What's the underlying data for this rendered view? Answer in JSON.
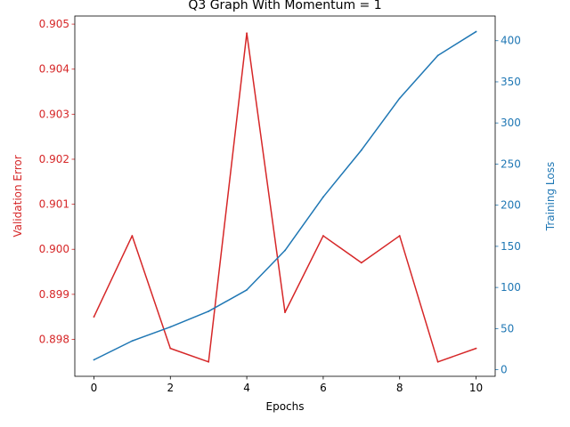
{
  "chart_data": {
    "type": "line",
    "title": "Q3 Graph With Momentum = 1",
    "xlabel": "Epochs",
    "ylabel_left": "Validation Error",
    "ylabel_right": "Training Loss",
    "x": [
      0,
      1,
      2,
      3,
      4,
      5,
      6,
      7,
      8,
      9,
      10
    ],
    "xlim": [
      -0.5,
      10.5
    ],
    "xticks": [
      0,
      2,
      4,
      6,
      8,
      10
    ],
    "ylim_left": [
      0.89718,
      0.90518
    ],
    "yticks_left": [
      "0.898",
      "0.899",
      "0.900",
      "0.901",
      "0.902",
      "0.903",
      "0.904",
      "0.905"
    ],
    "ylim_right": [
      -8,
      430
    ],
    "yticks_right": [
      "0",
      "50",
      "100",
      "150",
      "200",
      "250",
      "300",
      "350",
      "400"
    ],
    "grid": false,
    "series": [
      {
        "axis": "left",
        "color": "#d62728",
        "values": [
          0.8985,
          0.9003,
          0.8978,
          0.8975,
          0.9048,
          0.8986,
          0.9003,
          0.8997,
          0.9003,
          0.8975,
          0.8978
        ]
      },
      {
        "axis": "right",
        "color": "#1f77b4",
        "values": [
          12,
          35,
          52,
          71,
          97,
          145,
          210,
          267,
          330,
          382,
          411
        ]
      }
    ]
  }
}
